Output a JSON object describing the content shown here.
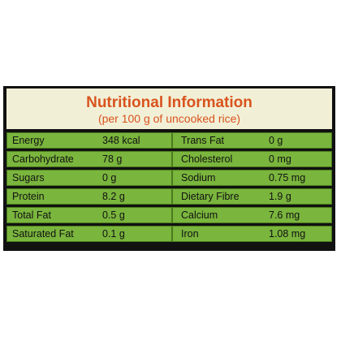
{
  "header": {
    "title": "Nutritional Information",
    "subtitle": "(per 100 g of uncooked rice)"
  },
  "rows": [
    {
      "name1": "Energy",
      "value1": "348 kcal",
      "name2": "Trans Fat",
      "value2": "0 g"
    },
    {
      "name1": "Carbohydrate",
      "value1": "78 g",
      "name2": "Cholesterol",
      "value2": "0 mg"
    },
    {
      "name1": "Sugars",
      "value1": "0 g",
      "name2": "Sodium",
      "value2": "0.75 mg"
    },
    {
      "name1": "Protein",
      "value1": "8.2 g",
      "name2": "Dietary Fibre",
      "value2": "1.9 g"
    },
    {
      "name1": "Total Fat",
      "value1": "0.5 g",
      "name2": "Calcium",
      "value2": "7.6 mg"
    },
    {
      "name1": "Saturated Fat",
      "value1": "0.1 g",
      "name2": "Iron",
      "value2": "1.08 mg"
    }
  ],
  "colors": {
    "title": "#d9531e",
    "header_bg": "#f1f0d7",
    "row_bg": "#7ab53d",
    "frame": "#111111"
  }
}
